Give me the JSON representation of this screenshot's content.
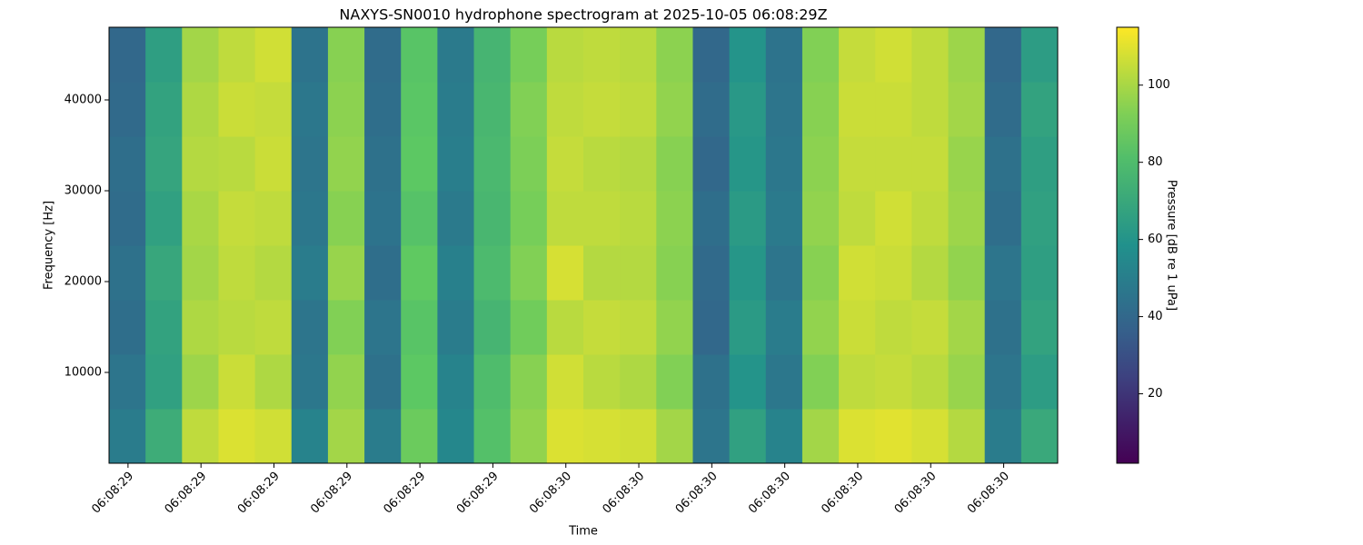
{
  "chart_data": {
    "type": "heatmap",
    "title": "NAXYS-SN0010 hydrophone spectrogram at 2025-10-05 06:08:29Z",
    "xlabel": "Time",
    "ylabel": "Frequency [Hz]",
    "colorbar_label": "Pressure [dB re 1 uPa]",
    "colormap": "viridis",
    "xlim": [
      29.374,
      30.674
    ],
    "xbins": [
      29.374,
      29.424,
      29.474,
      29.524,
      29.574,
      29.624,
      29.674,
      29.724,
      29.774,
      29.824,
      29.874,
      29.924,
      29.974,
      30.024,
      30.074,
      30.124,
      30.174,
      30.224,
      30.274,
      30.324,
      30.374,
      30.424,
      30.474,
      30.524,
      30.574,
      30.624,
      30.674
    ],
    "xticks": [
      {
        "value": 29.4,
        "label": "06:08:29"
      },
      {
        "value": 29.5,
        "label": "06:08:29"
      },
      {
        "value": 29.6,
        "label": "06:08:29"
      },
      {
        "value": 29.7,
        "label": "06:08:29"
      },
      {
        "value": 29.8,
        "label": "06:08:29"
      },
      {
        "value": 29.9,
        "label": "06:08:29"
      },
      {
        "value": 30.0,
        "label": "06:08:30"
      },
      {
        "value": 30.1,
        "label": "06:08:30"
      },
      {
        "value": 30.2,
        "label": "06:08:30"
      },
      {
        "value": 30.3,
        "label": "06:08:30"
      },
      {
        "value": 30.4,
        "label": "06:08:30"
      },
      {
        "value": 30.5,
        "label": "06:08:30"
      },
      {
        "value": 30.6,
        "label": "06:08:30"
      }
    ],
    "ylim": [
      0,
      48000
    ],
    "ybins": [
      0,
      6000,
      12000,
      18000,
      24000,
      30000,
      36000,
      42000,
      48000
    ],
    "yticks": [
      10000,
      20000,
      30000,
      40000
    ],
    "clim": [
      2,
      115
    ],
    "cticks": [
      20,
      40,
      60,
      80,
      100
    ],
    "z": [
      [
        49,
        72,
        104,
        109,
        107,
        52,
        99,
        49,
        89,
        54,
        82,
        96,
        109,
        108,
        107,
        99,
        46,
        66,
        52,
        99,
        109,
        110,
        108,
        102,
        49,
        70
      ],
      [
        46,
        66,
        98,
        106,
        101,
        47,
        96,
        44,
        86,
        52,
        80,
        94,
        107,
        103,
        101,
        93,
        44,
        60,
        47,
        93,
        104,
        105,
        103,
        97,
        46,
        64
      ],
      [
        43,
        67,
        101,
        103,
        104,
        46,
        93,
        46,
        84,
        49,
        76,
        90,
        103,
        105,
        104,
        96,
        40,
        63,
        49,
        96,
        106,
        104,
        105,
        99,
        44,
        67
      ],
      [
        44,
        69,
        99,
        104,
        102,
        49,
        97,
        43,
        87,
        51,
        79,
        93,
        108,
        102,
        102,
        94,
        41,
        61,
        46,
        94,
        107,
        106,
        102,
        96,
        46,
        65
      ],
      [
        42,
        66,
        100,
        105,
        104,
        47,
        94,
        45,
        83,
        48,
        77,
        91,
        104,
        104,
        103,
        95,
        43,
        63,
        48,
        96,
        104,
        107,
        104,
        98,
        43,
        66
      ],
      [
        43,
        68,
        102,
        103,
        106,
        46,
        96,
        44,
        86,
        50,
        78,
        92,
        105,
        103,
        102,
        94,
        40,
        61,
        47,
        95,
        105,
        105,
        105,
        97,
        44,
        65
      ],
      [
        41,
        67,
        101,
        106,
        105,
        47,
        95,
        43,
        85,
        49,
        77,
        93,
        104,
        105,
        104,
        96,
        42,
        62,
        46,
        94,
        106,
        106,
        104,
        99,
        42,
        67
      ],
      [
        40,
        65,
        99,
        104,
        107,
        45,
        94,
        42,
        84,
        48,
        76,
        91,
        103,
        104,
        103,
        95,
        40,
        60,
        45,
        93,
        105,
        107,
        104,
        98,
        40,
        64
      ]
    ]
  }
}
